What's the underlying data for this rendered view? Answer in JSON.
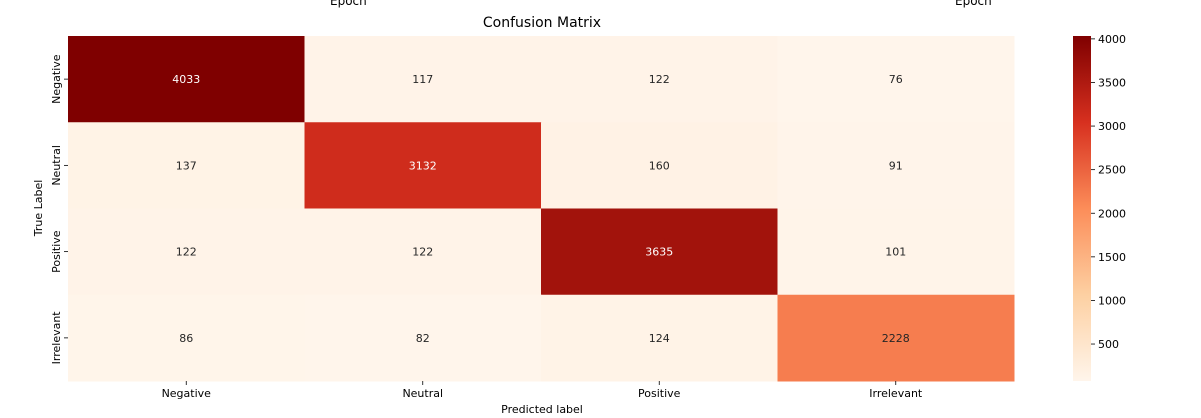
{
  "top_fragments": [
    "Epoch",
    "Epoch"
  ],
  "chart_data": {
    "type": "heatmap",
    "title": "Confusion Matrix",
    "xlabel": "Predicted label",
    "ylabel": "True Label",
    "x_categories": [
      "Negative",
      "Neutral",
      "Positive",
      "Irrelevant"
    ],
    "y_categories": [
      "Negative",
      "Neutral",
      "Positive",
      "Irrelevant"
    ],
    "values": [
      [
        4033,
        117,
        122,
        76
      ],
      [
        137,
        3132,
        160,
        91
      ],
      [
        122,
        122,
        3635,
        101
      ],
      [
        86,
        82,
        124,
        2228
      ]
    ],
    "colormap": "OrRd",
    "colorbar": {
      "range": [
        76,
        4033
      ],
      "ticks": [
        4000,
        3500,
        3000,
        2500,
        2000,
        1500,
        1000,
        500
      ]
    }
  }
}
